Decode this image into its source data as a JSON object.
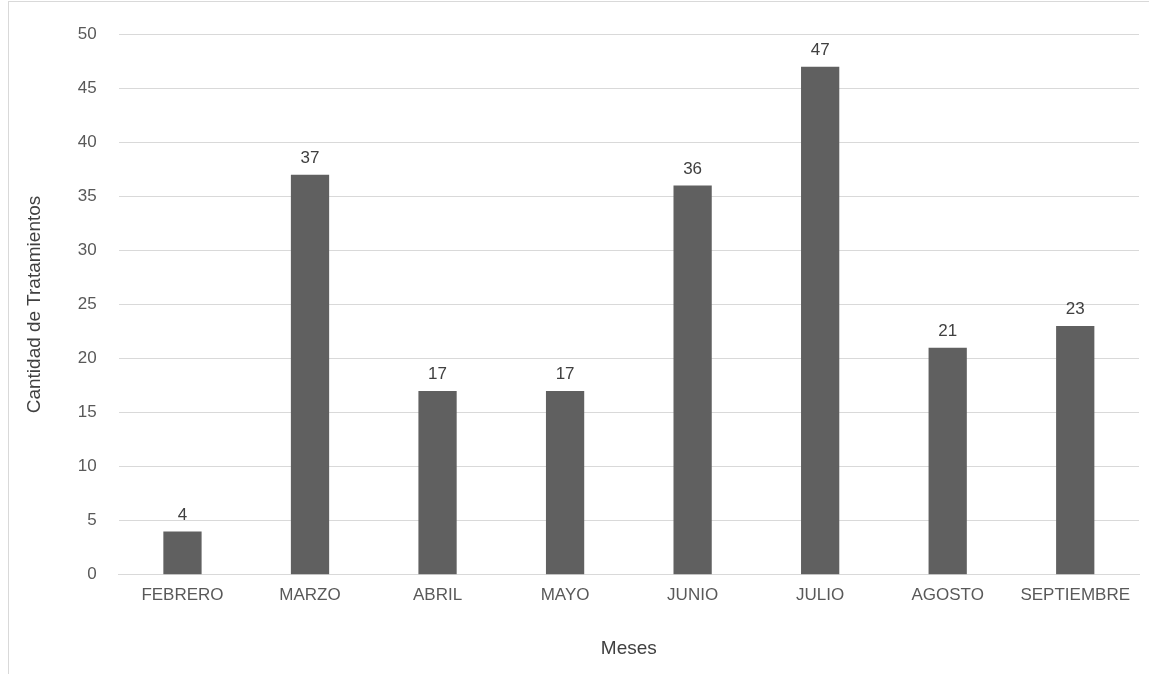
{
  "chart_data": {
    "type": "bar",
    "xlabel": "Meses",
    "ylabel": "Cantidad de Tratamientos",
    "categories": [
      "FEBRERO",
      "MARZO",
      "ABRIL",
      "MAYO",
      "JUNIO",
      "JULIO",
      "AGOSTO",
      "SEPTIEMBRE"
    ],
    "values": [
      4,
      37,
      17,
      17,
      36,
      47,
      21,
      23
    ],
    "color": "#606060",
    "ylim": [
      0,
      50
    ],
    "yticks": [
      0,
      5,
      10,
      15,
      20,
      25,
      30,
      35,
      40,
      45,
      50
    ],
    "grid": "y",
    "data_labels": true
  }
}
